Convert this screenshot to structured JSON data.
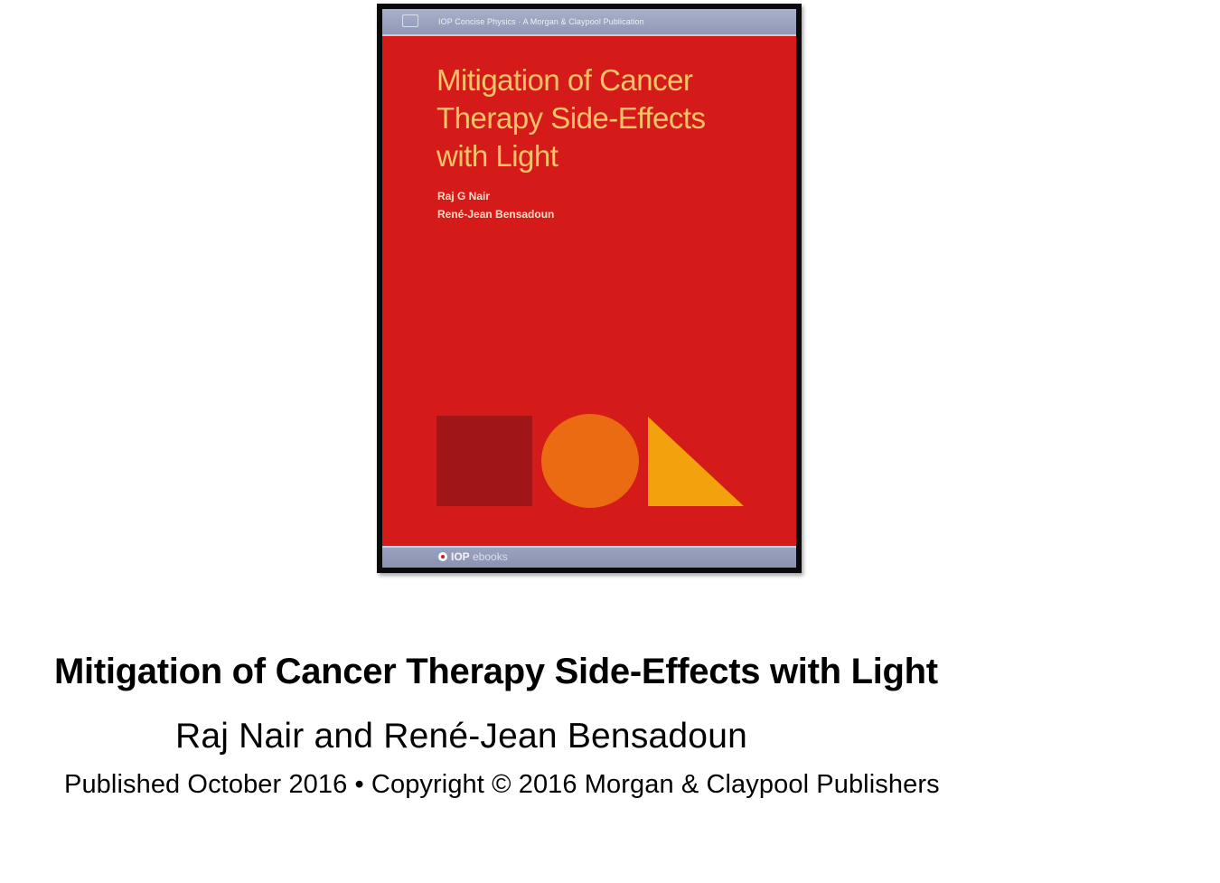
{
  "cover": {
    "series_line": "IOP Concise Physics · A Morgan & Claypool Publication",
    "title": "Mitigation of Cancer\nTherapy Side-Effects\nwith Light",
    "authors": [
      "Raj G Nair",
      "René-Jean Bensadoun"
    ],
    "imprint_bold": "IOP",
    "imprint_light": " ebooks",
    "colors": {
      "background": "#d51a1a",
      "title": "#f5c46a",
      "square": "#a01616",
      "circle": "#ea6b12",
      "triangle": "#f4a10e",
      "bars": "#9aa2bf"
    }
  },
  "caption": {
    "title": "Mitigation of Cancer Therapy Side-Effects with Light",
    "authors": "Raj Nair and René-Jean Bensadoun",
    "publication_info": "Published October 2016 • Copyright © 2016 Morgan & Claypool Publishers"
  }
}
